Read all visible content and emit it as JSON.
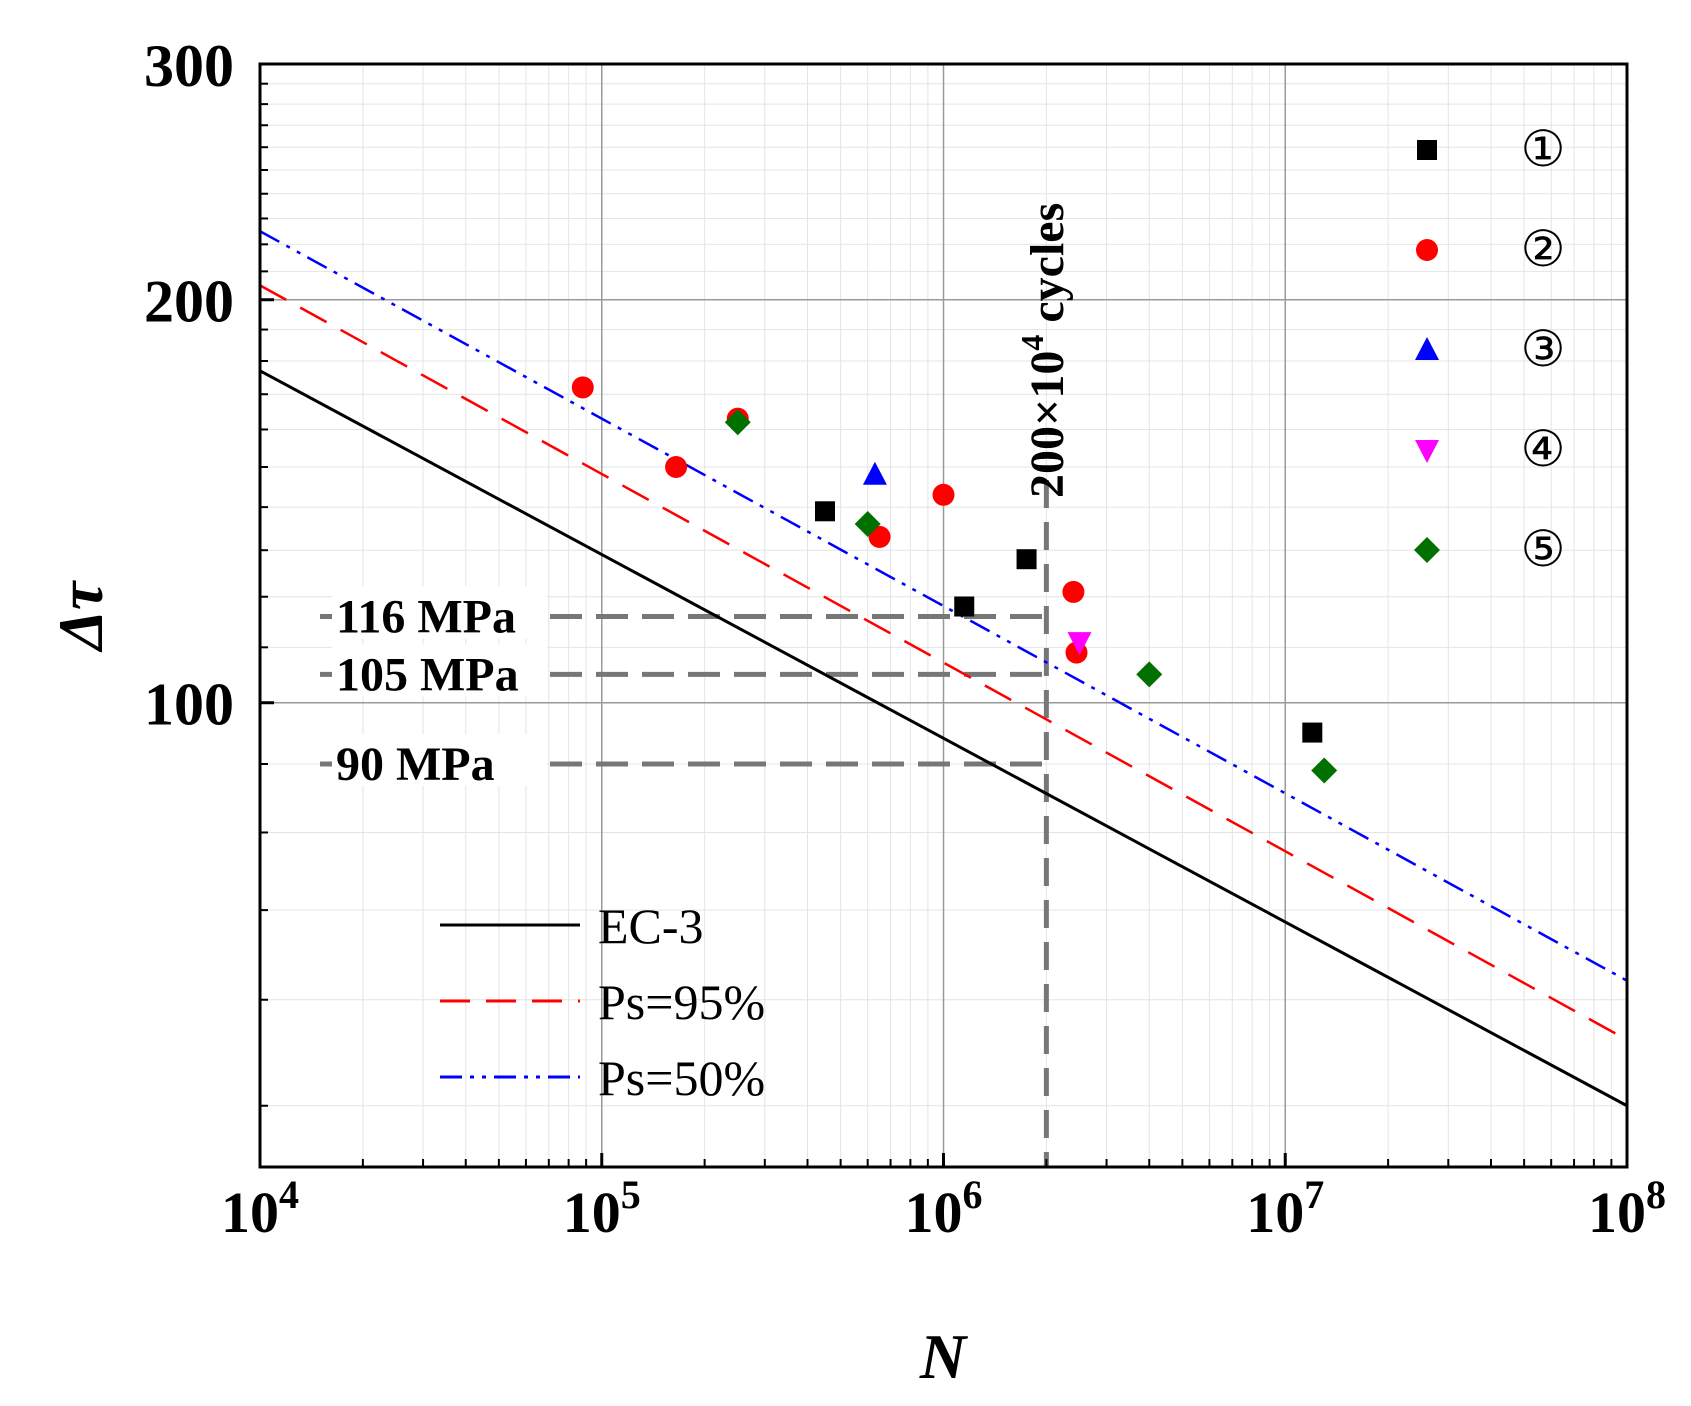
{
  "chart_data": {
    "type": "scatter",
    "title": "",
    "xlabel": "N",
    "ylabel": "Δτ",
    "x_scale": "log",
    "y_scale": "log",
    "xlim": [
      10000,
      100000000
    ],
    "ylim": [
      45,
      300
    ],
    "grid": true,
    "x_ticks": [
      {
        "value": 10000,
        "base": "10",
        "exp": "4"
      },
      {
        "value": 100000,
        "base": "10",
        "exp": "5"
      },
      {
        "value": 1000000,
        "base": "10",
        "exp": "6"
      },
      {
        "value": 10000000,
        "base": "10",
        "exp": "7"
      },
      {
        "value": 100000000,
        "base": "10",
        "exp": "8"
      }
    ],
    "y_ticks": [
      {
        "value": 100,
        "label": "100"
      },
      {
        "value": 200,
        "label": "200"
      },
      {
        "value": 300,
        "label": "300"
      }
    ],
    "lines": [
      {
        "name": "EC-3",
        "color": "#000000",
        "dash": "solid",
        "points": [
          [
            10000,
            177
          ],
          [
            100000000,
            50
          ]
        ]
      },
      {
        "name": "Ps=95%",
        "color": "#ff0000",
        "dash": "dashed",
        "points": [
          [
            10000,
            205
          ],
          [
            100000000,
            56
          ]
        ]
      },
      {
        "name": "Ps=50%",
        "color": "#0000ff",
        "dash": "dash-dot-dot",
        "points": [
          [
            10000,
            225
          ],
          [
            100000000,
            62
          ]
        ]
      }
    ],
    "series": [
      {
        "name": "①",
        "marker": "square",
        "color": "#000000",
        "points": [
          [
            450000,
            139
          ],
          [
            1150000,
            118
          ],
          [
            1750000,
            128
          ],
          [
            12000000,
            95
          ]
        ]
      },
      {
        "name": "②",
        "marker": "circle",
        "color": "#ff0000",
        "points": [
          [
            88000,
            172
          ],
          [
            165000,
            150
          ],
          [
            250000,
            163
          ],
          [
            650000,
            133
          ],
          [
            1000000,
            143
          ],
          [
            2400000,
            121
          ],
          [
            2450000,
            109
          ]
        ]
      },
      {
        "name": "③",
        "marker": "triangle-up",
        "color": "#0000ff",
        "points": [
          [
            630000,
            148
          ]
        ]
      },
      {
        "name": "④",
        "marker": "triangle-down",
        "color": "#ff00ff",
        "points": [
          [
            2500000,
            111
          ]
        ]
      },
      {
        "name": "⑤",
        "marker": "diamond",
        "color": "#007000",
        "points": [
          [
            250000,
            162
          ],
          [
            600000,
            136
          ],
          [
            4000000,
            105
          ],
          [
            13000000,
            89
          ]
        ]
      }
    ],
    "reference_lines": {
      "vertical": {
        "x": 2000000,
        "label": "200×10",
        "label_sup": "4",
        "label_suffix": " cycles"
      },
      "horizontal": [
        {
          "y": 116,
          "label": "116 MPa"
        },
        {
          "y": 105,
          "label": "105 MPa"
        },
        {
          "y": 90,
          "label": "90 MPa"
        }
      ]
    },
    "legend_lines_placement": "bottom-left",
    "legend_markers_placement": "top-right"
  }
}
